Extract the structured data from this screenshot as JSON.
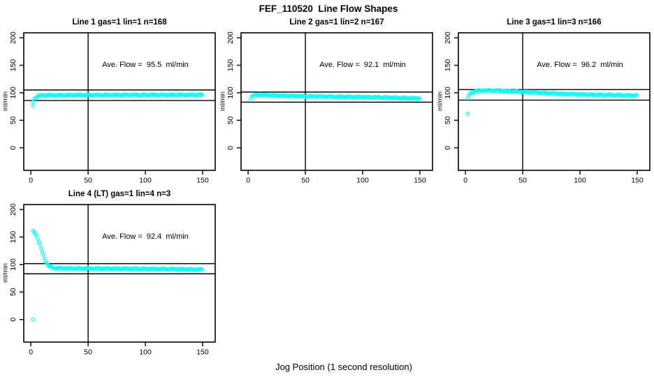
{
  "figure_title": "FEF_110520  Line Flow Shapes",
  "xlabel": "Jog Position (1 second resolution)",
  "ylabel": "ml/min",
  "colors": {
    "marker": "#00FFFF",
    "axis": "#000000",
    "background": "#FFFFFF"
  },
  "axes": {
    "x_ticks": [
      0,
      50,
      100,
      150
    ],
    "y_ticks": [
      0,
      50,
      100,
      150,
      200
    ],
    "xlim": [
      -6.2,
      161
    ],
    "ylim": [
      -41,
      209
    ],
    "x_data_range": [
      2,
      150
    ]
  },
  "chart_data": [
    {
      "type": "scatter",
      "title": "Line 1 gas=1 lin=1 n=168",
      "line": 1,
      "gas": 1,
      "lin": 1,
      "n": 168,
      "annotation": "Ave. Flow =  95.5  ml/min",
      "ave_flow_ml_min": 95.5,
      "vline_x": 50,
      "hlines_y": [
        105.1,
        86.0
      ],
      "outlier_points": [
        [
          2,
          76
        ]
      ],
      "curve_keypoints": [
        [
          2,
          84
        ],
        [
          3,
          87.5
        ],
        [
          4,
          90.5
        ],
        [
          5,
          92.5
        ],
        [
          6,
          94
        ],
        [
          8,
          95
        ],
        [
          12,
          95.3
        ],
        [
          20,
          95.6
        ],
        [
          40,
          95.8
        ],
        [
          80,
          96
        ],
        [
          150,
          96.2
        ]
      ]
    },
    {
      "type": "scatter",
      "title": "Line 2 gas=1 lin=2 n=167",
      "line": 2,
      "gas": 1,
      "lin": 2,
      "n": 167,
      "annotation": "Ave. Flow =  92.1  ml/min",
      "ave_flow_ml_min": 92.1,
      "vline_x": 50,
      "hlines_y": [
        101.3,
        82.9
      ],
      "outlier_points": [],
      "curve_keypoints": [
        [
          2,
          88
        ],
        [
          3,
          92
        ],
        [
          4,
          94.5
        ],
        [
          6,
          96
        ],
        [
          10,
          96.3
        ],
        [
          18,
          95.5
        ],
        [
          30,
          94.5
        ],
        [
          50,
          93.5
        ],
        [
          70,
          93
        ],
        [
          100,
          92
        ],
        [
          125,
          91
        ],
        [
          150,
          89.5
        ]
      ]
    },
    {
      "type": "scatter",
      "title": "Line 3 gas=1 lin=3 n=166",
      "line": 3,
      "gas": 1,
      "lin": 3,
      "n": 166,
      "annotation": "Ave. Flow =  96.2  ml/min",
      "ave_flow_ml_min": 96.2,
      "vline_x": 50,
      "hlines_y": [
        105.8,
        86.6
      ],
      "outlier_points": [
        [
          2,
          62
        ]
      ],
      "curve_keypoints": [
        [
          2,
          90
        ],
        [
          3,
          94
        ],
        [
          4,
          97.5
        ],
        [
          5,
          99.5
        ],
        [
          6,
          101
        ],
        [
          8,
          102.5
        ],
        [
          12,
          103.5
        ],
        [
          20,
          104
        ],
        [
          30,
          103.5
        ],
        [
          40,
          102.5
        ],
        [
          55,
          101
        ],
        [
          70,
          99.5
        ],
        [
          85,
          98
        ],
        [
          100,
          97
        ],
        [
          120,
          96
        ],
        [
          135,
          95.5
        ],
        [
          150,
          95
        ]
      ]
    },
    {
      "type": "scatter",
      "title": "Line 4 (LT) gas=1 lin=4 n=3",
      "line": 4,
      "gas": 1,
      "lin": 4,
      "n": 3,
      "annotation": "Ave. Flow =  92.4  ml/min",
      "ave_flow_ml_min": 92.4,
      "vline_x": 50,
      "hlines_y": [
        101.6,
        83.2
      ],
      "outlier_points": [
        [
          2,
          0
        ]
      ],
      "curve_keypoints": [
        [
          2,
          160
        ],
        [
          3,
          159
        ],
        [
          4,
          156.5
        ],
        [
          5,
          152.5
        ],
        [
          6,
          147.5
        ],
        [
          7,
          141.5
        ],
        [
          8,
          135.5
        ],
        [
          9,
          129.5
        ],
        [
          10,
          123.5
        ],
        [
          11,
          117.5
        ],
        [
          12,
          111.5
        ],
        [
          13,
          106.5
        ],
        [
          14,
          102.5
        ],
        [
          15,
          99.5
        ],
        [
          16,
          97.5
        ],
        [
          17,
          96
        ],
        [
          18,
          95
        ],
        [
          19,
          94.3
        ],
        [
          20,
          93.8
        ],
        [
          23,
          93.3
        ],
        [
          27,
          93
        ],
        [
          35,
          92.8
        ],
        [
          50,
          92.6
        ],
        [
          70,
          92.4
        ],
        [
          90,
          92.2
        ],
        [
          110,
          91.8
        ],
        [
          130,
          91.3
        ],
        [
          150,
          90.6
        ]
      ]
    }
  ]
}
